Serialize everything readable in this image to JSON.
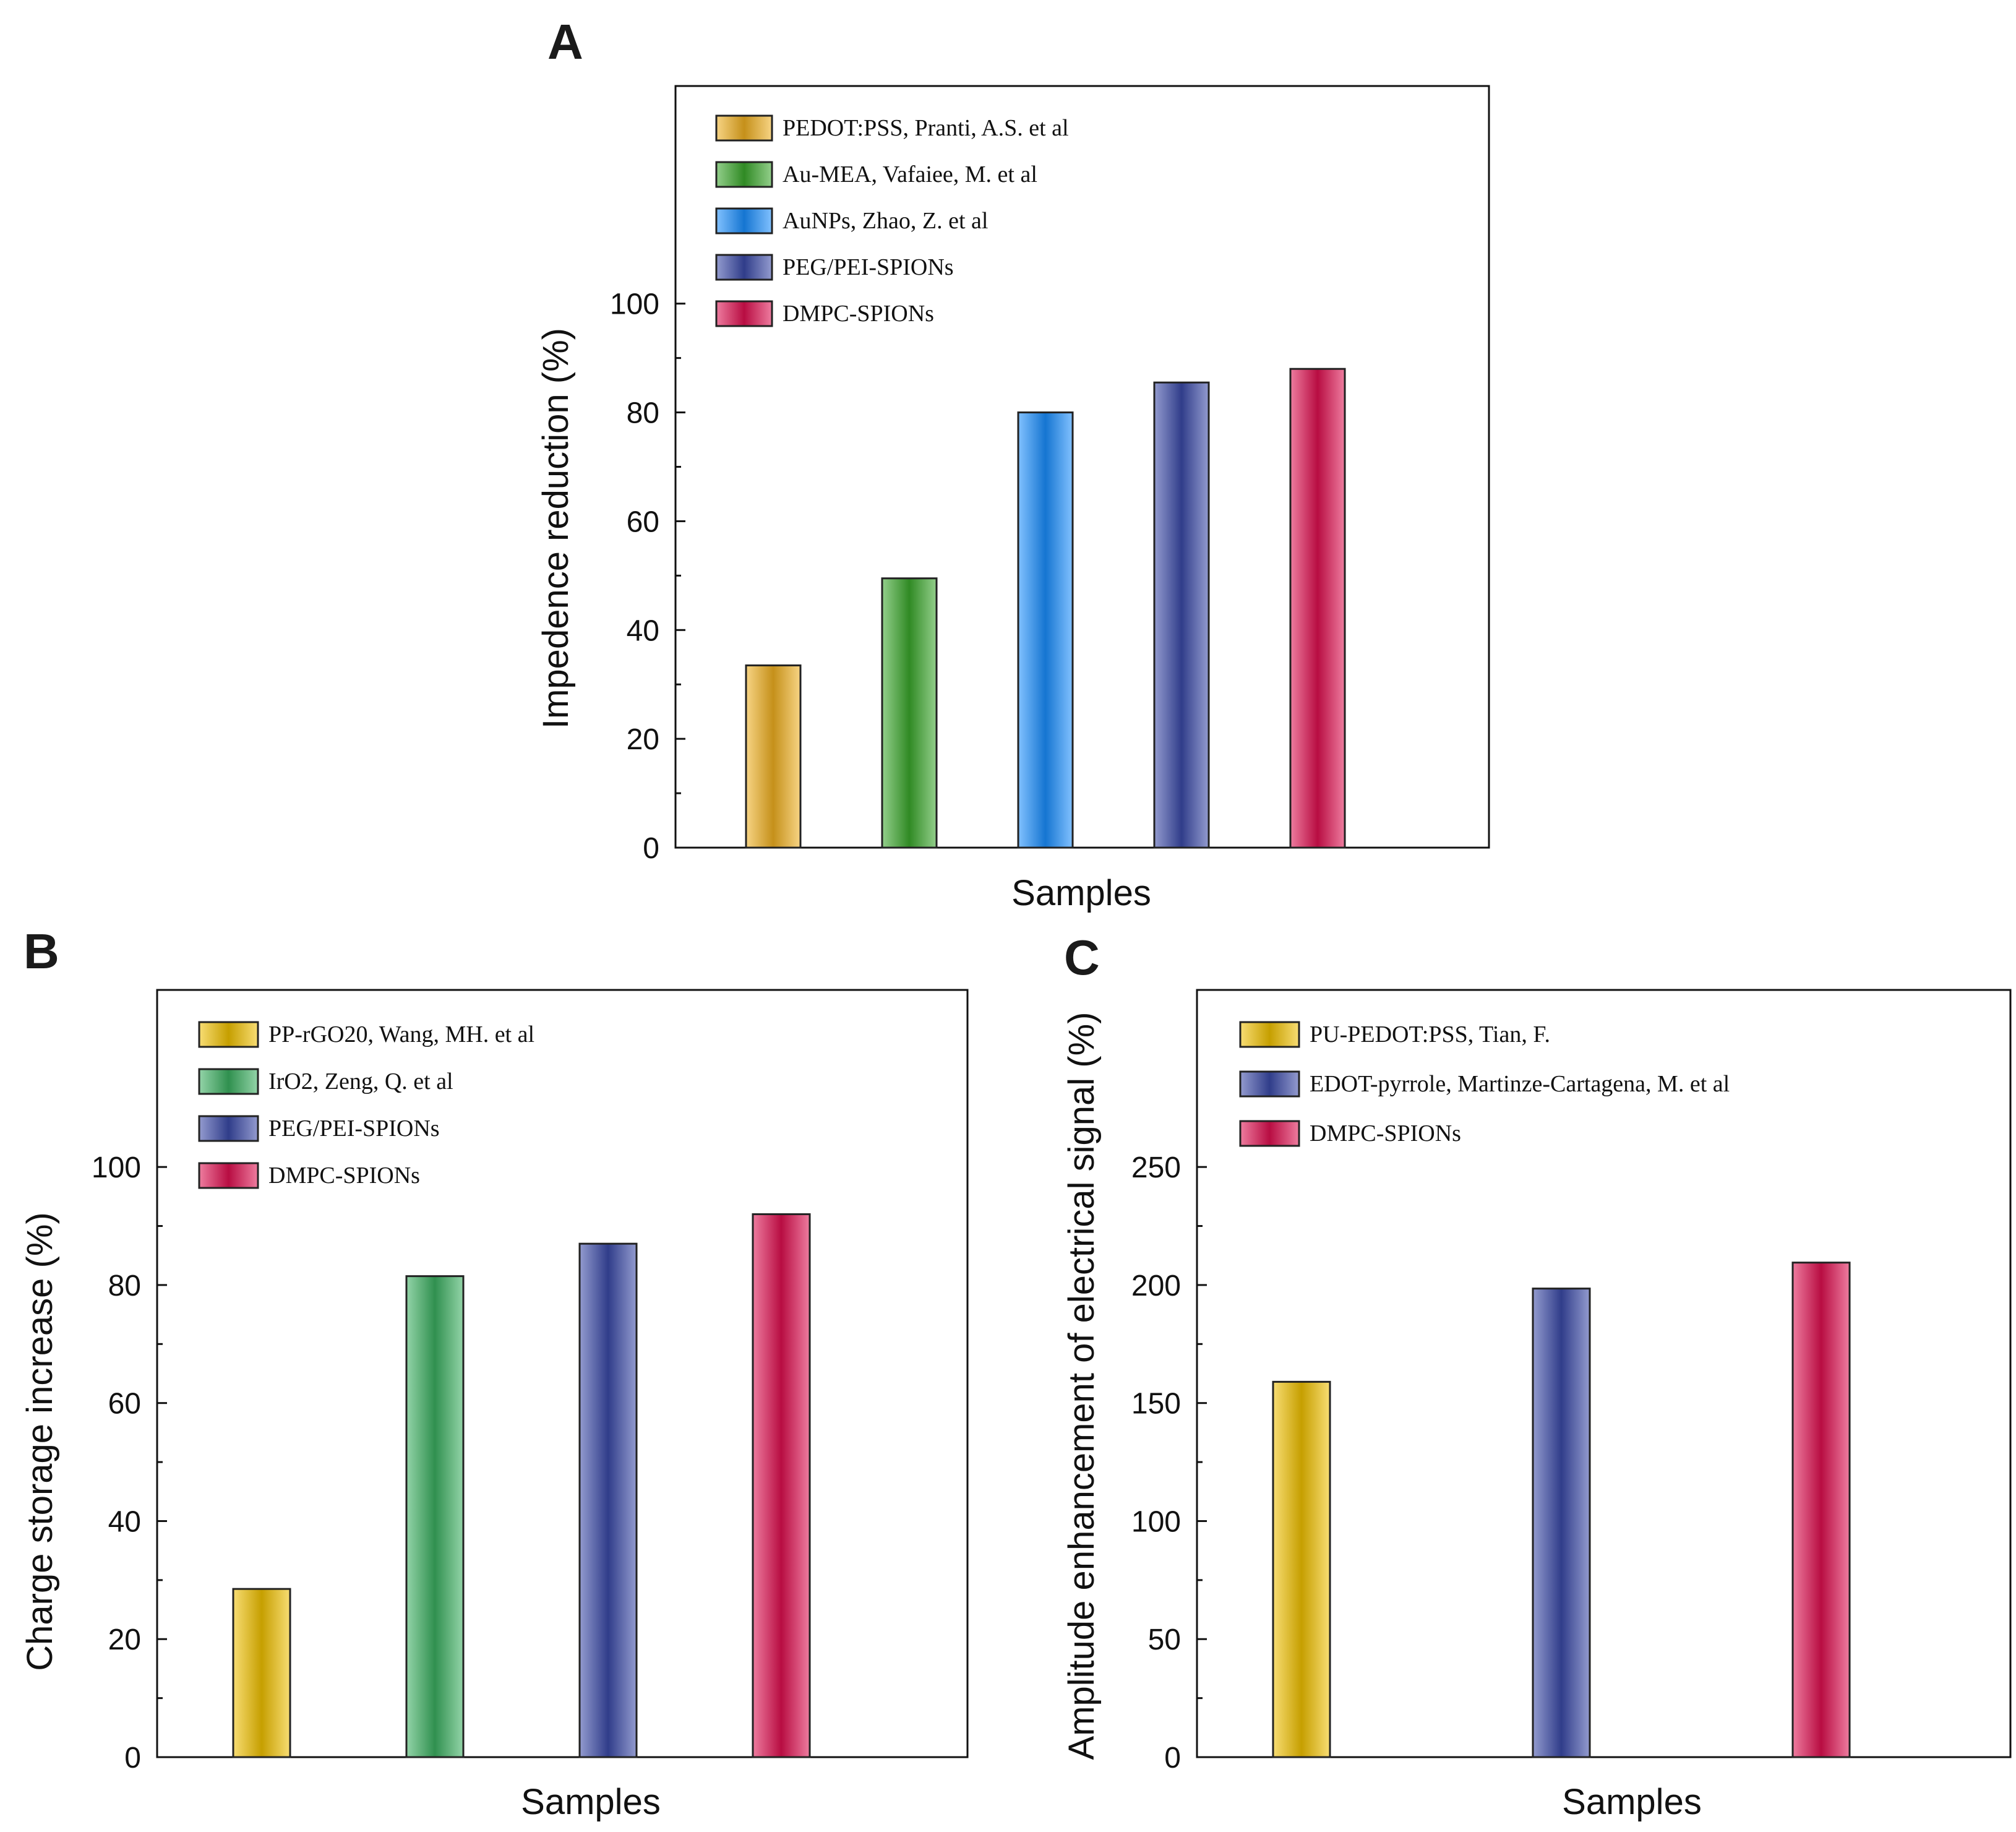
{
  "chart_data": [
    {
      "panel": "A",
      "type": "bar",
      "xlabel": "Samples",
      "ylabel": "Impedence reduction (%)",
      "ylim": [
        0,
        140
      ],
      "yticks": [
        0,
        20,
        40,
        60,
        80,
        100
      ],
      "minor_step": 10,
      "categories": [
        "PEDOT:PSS, Pranti, A.S. et al",
        "Au-MEA, Vafaiee, M. et al",
        "AuNPs, Zhao, Z. et al",
        "PEG/PEI-SPIONs",
        "DMPC-SPIONs"
      ],
      "values": [
        33.5,
        49.5,
        80,
        85.5,
        88
      ],
      "colors": [
        "#f0b020",
        "#3aa82c",
        "#1a8fff",
        "#3a4aa8",
        "#e01050"
      ],
      "legend_position": "top-left"
    },
    {
      "panel": "B",
      "type": "bar",
      "xlabel": "Samples",
      "ylabel": "Charge storage increase (%)",
      "ylim": [
        0,
        130
      ],
      "yticks": [
        0,
        20,
        40,
        60,
        80,
        100
      ],
      "minor_step": 10,
      "categories": [
        "PP-rGO20, Wang, MH. et al",
        "IrO2, Zeng, Q. et al",
        "PEG/PEI-SPIONs",
        "DMPC-SPIONs"
      ],
      "values": [
        28.5,
        81.5,
        87,
        92
      ],
      "colors": [
        "#f2c200",
        "#3ab060",
        "#3a4aa8",
        "#e01050"
      ],
      "legend_position": "top-left"
    },
    {
      "panel": "C",
      "type": "bar",
      "xlabel": "Samples",
      "ylabel": "Amplitude enhancement of electrical signal (%)",
      "ylim": [
        0,
        325
      ],
      "yticks": [
        0,
        50,
        100,
        150,
        200,
        250
      ],
      "minor_step": 25,
      "categories": [
        "PU-PEDOT:PSS, Tian, F.",
        "EDOT-pyrrole, Martinze-Cartagena, M. et al",
        "DMPC-SPIONs"
      ],
      "values": [
        159,
        198.5,
        209.5
      ],
      "colors": [
        "#f2c200",
        "#3a4aa8",
        "#e01050"
      ],
      "legend_position": "top-left"
    }
  ]
}
